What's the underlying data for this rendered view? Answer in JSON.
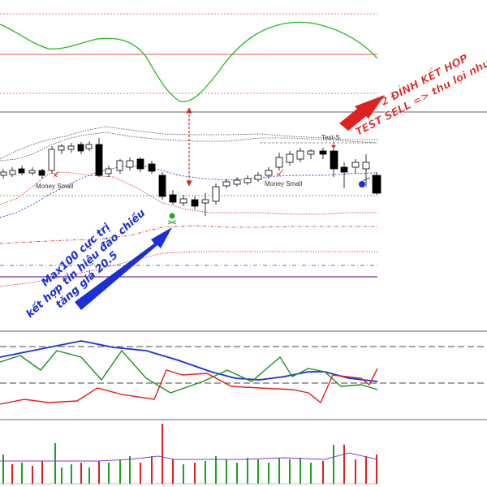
{
  "markers": {
    "money_small_1": "Money Small",
    "money_small_2": "Money Small",
    "test_label": "Test-S"
  },
  "annotations": {
    "top_right": {
      "line1": "2 ĐỈNH KẾT HỢP",
      "line2": "TEST SELL => thu lợi nhuận"
    },
    "bottom_left": {
      "line1": "Max100 cực trị",
      "line2": "kết hợp tín hiệu đảo chiều",
      "line3": "tăng giá 20.5"
    }
  },
  "colors": {
    "background": "#ffffff",
    "oscillator_line": "#22bb22",
    "bullish": "#ffffff",
    "bearish": "#000000",
    "upper_band": "#555555",
    "mid_band": "#2a3bd6",
    "lower_band": "#d22222",
    "level_green": "#22aa22",
    "level_purple": "#7a2a8a",
    "annotation_red": "#e0201e",
    "annotation_blue": "#1a2fd8",
    "stoch_blue": "#1a2fd8",
    "stoch_green": "#1f8f1f",
    "stoch_red": "#e0201e",
    "volume_green": "#1f9f1f",
    "volume_red": "#e0201e"
  }
}
